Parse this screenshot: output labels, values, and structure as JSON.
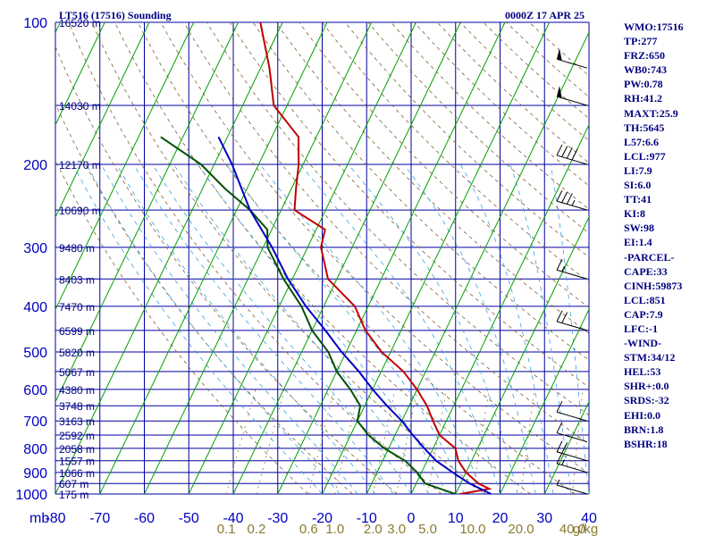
{
  "header": {
    "title": "LT516 (17516) Sounding",
    "time": "0000Z 17 APR 25"
  },
  "stats": [
    "WMO:17516",
    "TP:277",
    "FRZ:650",
    "WB0:743",
    "PW:0.78",
    "RH:41.2",
    "MAXT:25.9",
    "TH:5645",
    "L57:6.6",
    "LCL:977",
    "LI:7.9",
    "SI:6.0",
    "TT:41",
    "KI:8",
    "SW:98",
    "EI:1.4",
    "-PARCEL-",
    "CAPE:33",
    "CINH:59873",
    "LCL:851",
    "CAP:7.9",
    "LFC:-1",
    "-WIND-",
    "STM:34/12",
    "HEL:53",
    "SHR+:0.0",
    "SRDS:-32",
    "EHI:0.0",
    "BRN:1.8",
    "BSHR:18"
  ],
  "chart_data": {
    "type": "line",
    "subtype": "skew-T log-P sounding",
    "x_axis": {
      "label": "mb",
      "ticks": [
        -80,
        -70,
        -60,
        -50,
        -40,
        -30,
        -20,
        -10,
        0,
        10,
        20,
        30,
        40
      ],
      "tick_labels": [
        "-80",
        "-70",
        "-60",
        "-50",
        "-40",
        "-30",
        "-20",
        "-10",
        "0",
        "10",
        "20",
        "30",
        "40"
      ],
      "xlim": [
        -80,
        40
      ]
    },
    "y_axis": {
      "scale": "log",
      "ylim": [
        1000,
        100
      ],
      "ticks": [
        100,
        200,
        300,
        400,
        500,
        600,
        700,
        800,
        900,
        1000
      ],
      "tick_labels": [
        "100",
        "200",
        "300",
        "400",
        "500",
        "600",
        "700",
        "800",
        "900",
        "1000"
      ]
    },
    "isobars_extra": [
      150,
      250,
      350,
      450,
      550,
      650,
      750,
      850,
      950
    ],
    "height_labels": [
      {
        "p": 100,
        "label": "16520 m"
      },
      {
        "p": 150,
        "label": "14030 m"
      },
      {
        "p": 200,
        "label": "12170 m"
      },
      {
        "p": 250,
        "label": "10690 m"
      },
      {
        "p": 300,
        "label": "9480 m"
      },
      {
        "p": 350,
        "label": "8403 m"
      },
      {
        "p": 400,
        "label": "7470 m"
      },
      {
        "p": 450,
        "label": "6599 m"
      },
      {
        "p": 500,
        "label": "5820 m"
      },
      {
        "p": 550,
        "label": "5067 m"
      },
      {
        "p": 600,
        "label": "4380 m"
      },
      {
        "p": 650,
        "label": "3748 m"
      },
      {
        "p": 700,
        "label": "3163 m"
      },
      {
        "p": 750,
        "label": "2592 m"
      },
      {
        "p": 800,
        "label": "2058 m"
      },
      {
        "p": 850,
        "label": "1557 m"
      },
      {
        "p": 900,
        "label": "1066 m"
      },
      {
        "p": 950,
        "label": "607 m"
      },
      {
        "p": 1000,
        "label": "175 m"
      }
    ],
    "mixing_ratio_labels": [
      "0.1",
      "0.2",
      "0.6",
      "1.0",
      "2.0",
      "3.0",
      "5.0",
      "10.0",
      "20.0",
      "40.0"
    ],
    "mixing_ratio_unit": "g/kg",
    "series": [
      {
        "role": "temperature",
        "color": "#c00000",
        "points": [
          [
            1000,
            11
          ],
          [
            975,
            17
          ],
          [
            950,
            14
          ],
          [
            900,
            10
          ],
          [
            850,
            7
          ],
          [
            800,
            5
          ],
          [
            750,
            0
          ],
          [
            700,
            -3
          ],
          [
            650,
            -6
          ],
          [
            600,
            -10
          ],
          [
            550,
            -15
          ],
          [
            500,
            -22
          ],
          [
            450,
            -28
          ],
          [
            400,
            -33
          ],
          [
            350,
            -42
          ],
          [
            300,
            -47
          ],
          [
            275,
            -48
          ],
          [
            250,
            -57
          ],
          [
            225,
            -59
          ],
          [
            200,
            -61
          ],
          [
            175,
            -64
          ],
          [
            150,
            -73
          ],
          [
            125,
            -78
          ],
          [
            100,
            -85
          ]
        ]
      },
      {
        "role": "dewpoint",
        "color": "#005000",
        "points": [
          [
            1000,
            10
          ],
          [
            975,
            6
          ],
          [
            950,
            2
          ],
          [
            900,
            -1
          ],
          [
            850,
            -5
          ],
          [
            800,
            -11
          ],
          [
            750,
            -16
          ],
          [
            700,
            -20
          ],
          [
            650,
            -21
          ],
          [
            600,
            -25
          ],
          [
            550,
            -30
          ],
          [
            500,
            -34
          ],
          [
            450,
            -40
          ],
          [
            400,
            -45
          ],
          [
            350,
            -52
          ],
          [
            300,
            -59
          ],
          [
            275,
            -61
          ],
          [
            250,
            -67
          ],
          [
            225,
            -75
          ],
          [
            200,
            -83
          ],
          [
            175,
            -95
          ]
        ]
      },
      {
        "role": "parcel path",
        "color": "#0000c0",
        "points": [
          [
            1000,
            18
          ],
          [
            950,
            12
          ],
          [
            900,
            7
          ],
          [
            850,
            2
          ],
          [
            800,
            -2
          ],
          [
            750,
            -6
          ],
          [
            700,
            -10
          ],
          [
            650,
            -15
          ],
          [
            600,
            -20
          ],
          [
            550,
            -25
          ],
          [
            500,
            -31
          ],
          [
            450,
            -37
          ],
          [
            400,
            -44
          ],
          [
            350,
            -51
          ],
          [
            300,
            -58
          ],
          [
            250,
            -67
          ],
          [
            200,
            -76
          ],
          [
            175,
            -82
          ]
        ]
      }
    ],
    "wind_barbs": [
      {
        "p": 1000,
        "speed_kt": 5
      },
      {
        "p": 900,
        "speed_kt": 15
      },
      {
        "p": 850,
        "speed_kt": 20
      },
      {
        "p": 775,
        "speed_kt": 10
      },
      {
        "p": 700,
        "speed_kt": 10
      },
      {
        "p": 450,
        "speed_kt": 20
      },
      {
        "p": 350,
        "speed_kt": 15
      },
      {
        "p": 250,
        "speed_kt": 35
      },
      {
        "p": 200,
        "speed_kt": 40
      },
      {
        "p": 150,
        "speed_kt": 50
      },
      {
        "p": 125,
        "speed_kt": 50
      }
    ],
    "grid": true
  }
}
